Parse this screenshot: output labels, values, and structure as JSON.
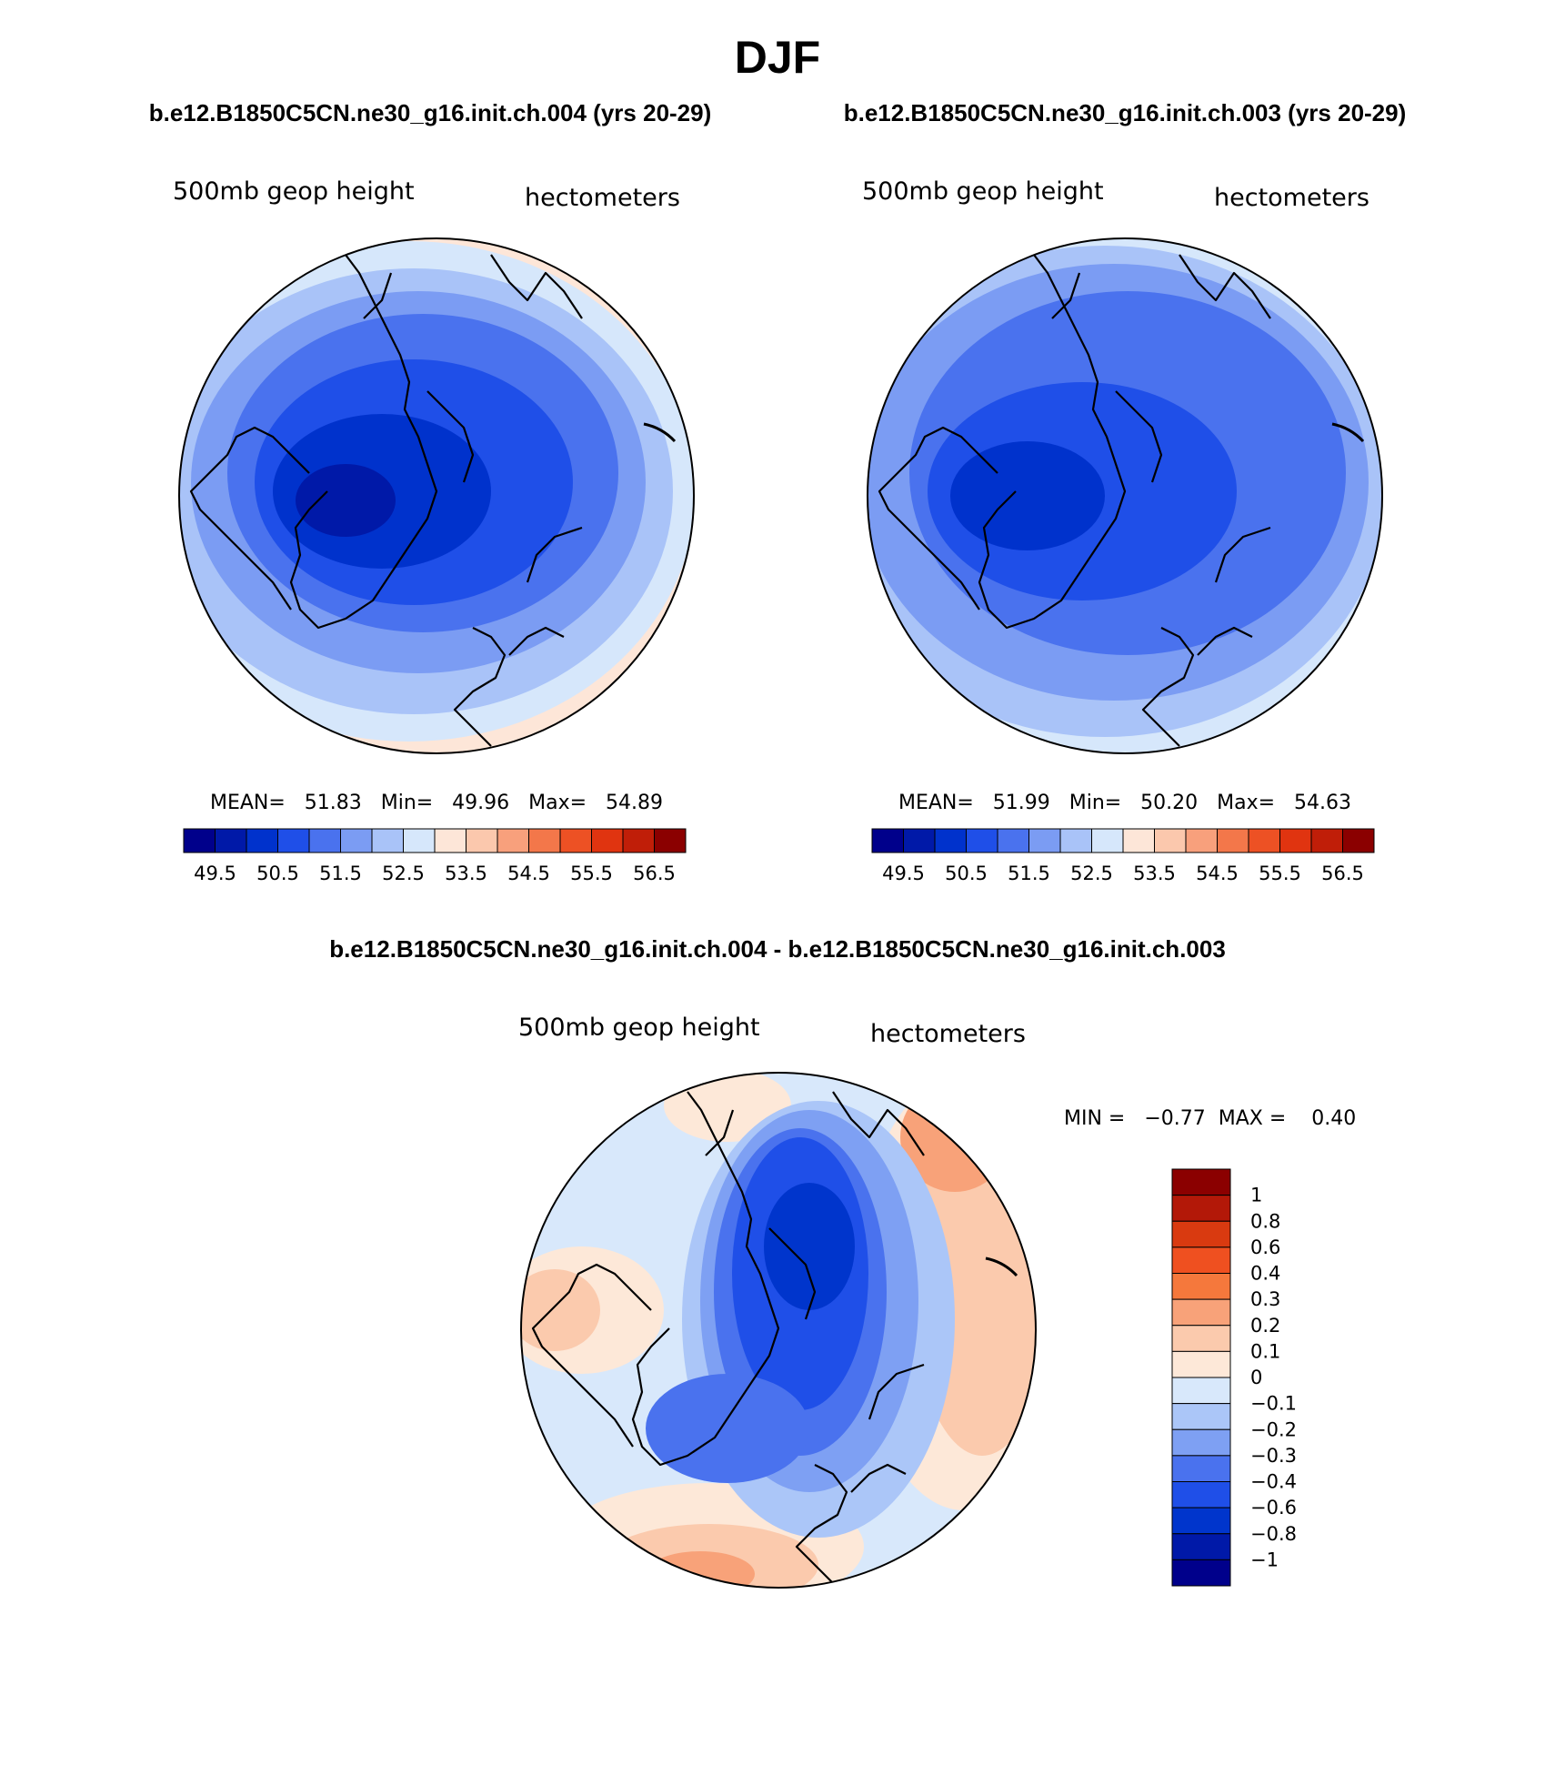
{
  "figure": {
    "season": "DJF",
    "case_header_left": "b.e12.B1850C5CN.ne30_g16.init.ch.004 (yrs 20-29)",
    "case_header_right": "b.e12.B1850C5CN.ne30_g16.init.ch.003 (yrs 20-29)",
    "diff_header": "b.e12.B1850C5CN.ne30_g16.init.ch.004 - b.e12.B1850C5CN.ne30_g16.init.ch.003"
  },
  "panels": [
    {
      "variable": "500mb geop height",
      "units": "hectometers",
      "stats_text": "MEAN=   51.83   Min=   49.96   Max=   54.89",
      "mean": 51.83,
      "min": 49.96,
      "max": 54.89
    },
    {
      "variable": "500mb geop height",
      "units": "hectometers",
      "stats_text": "MEAN=   51.99   Min=   50.20   Max=   54.63",
      "mean": 51.99,
      "min": 50.2,
      "max": 54.63
    }
  ],
  "diff_panel": {
    "variable": "500mb geop height",
    "units": "hectometers",
    "stats_text": "MIN =   −0.77  MAX =    0.40",
    "min": -0.77,
    "max": 0.4
  },
  "colorbar_main": {
    "colors": [
      "#00008b",
      "#0019a8",
      "#0032cc",
      "#1f4fe8",
      "#4a72ee",
      "#7b9cf3",
      "#a9c3f8",
      "#d6e7fb",
      "#fde6d8",
      "#fbc8ad",
      "#f8a07c",
      "#f3774a",
      "#ed5124",
      "#e03410",
      "#c01e08",
      "#8b0000"
    ],
    "tick_labels": [
      "49.5",
      "50.5",
      "51.5",
      "52.5",
      "53.5",
      "54.5",
      "55.5",
      "56.5"
    ]
  },
  "colorbar_diff": {
    "colors": [
      "#8b0000",
      "#b31808",
      "#d93a10",
      "#ef5020",
      "#f5783c",
      "#f8a279",
      "#fbcaad",
      "#fde8d8",
      "#d8e8fb",
      "#abc6f8",
      "#7ea0f3",
      "#4a72ee",
      "#1f4fe8",
      "#0035cc",
      "#0019a8",
      "#00008b"
    ],
    "tick_labels": [
      "1",
      "0.8",
      "0.6",
      "0.4",
      "0.3",
      "0.2",
      "0.1",
      "0",
      "−0.1",
      "−0.2",
      "−0.3",
      "−0.4",
      "−0.6",
      "−0.8",
      "−1"
    ]
  }
}
